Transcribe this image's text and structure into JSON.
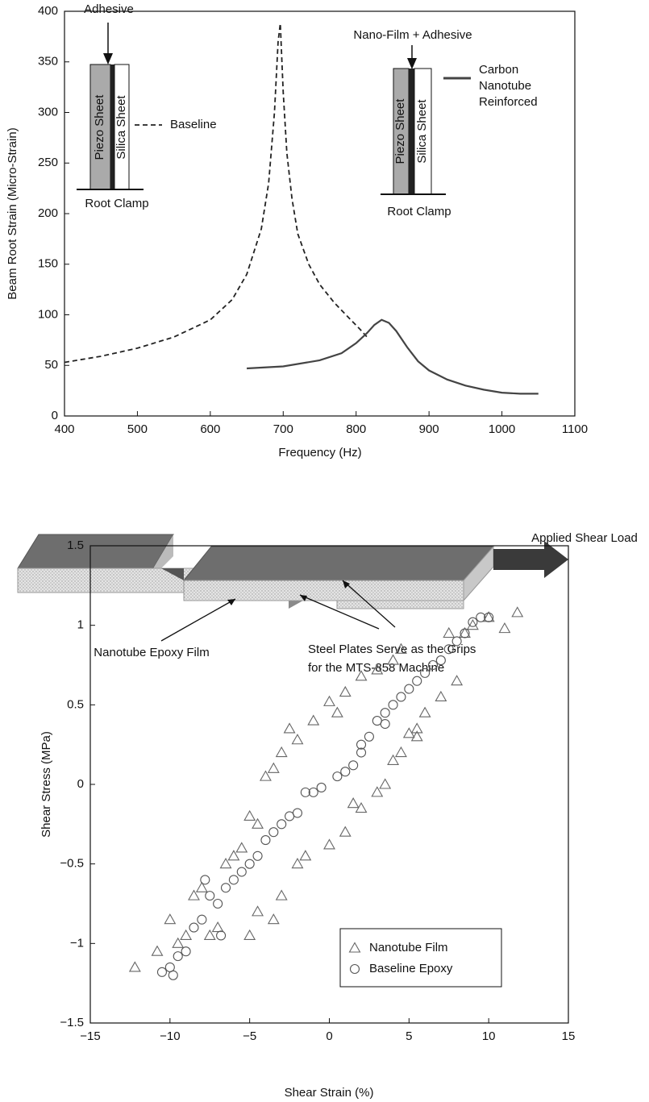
{
  "chart_data": [
    {
      "type": "line",
      "x_label": "Frequency (Hz)",
      "y_label": "Beam Root Strain (Micro-Strain)",
      "xlim": [
        400,
        1100
      ],
      "ylim": [
        0,
        400
      ],
      "xticks": [
        400,
        500,
        600,
        700,
        800,
        900,
        1000,
        1100
      ],
      "yticks": [
        0,
        50,
        100,
        150,
        200,
        250,
        300,
        350,
        400
      ],
      "series": [
        {
          "name": "Baseline",
          "color": "#222222",
          "dash": true,
          "x": [
            400,
            450,
            500,
            550,
            600,
            630,
            650,
            670,
            680,
            688,
            693,
            696,
            700,
            705,
            712,
            720,
            735,
            750,
            770,
            790,
            805,
            815
          ],
          "values": [
            53,
            59,
            67,
            78,
            95,
            115,
            140,
            185,
            230,
            300,
            370,
            388,
            320,
            260,
            215,
            180,
            150,
            130,
            112,
            97,
            86,
            78
          ]
        },
        {
          "name": "Carbon Nanotube Reinforced",
          "color": "#444444",
          "dash": false,
          "x": [
            650,
            700,
            750,
            780,
            800,
            815,
            825,
            835,
            845,
            855,
            870,
            885,
            900,
            925,
            950,
            975,
            1000,
            1025,
            1050
          ],
          "values": [
            47,
            49,
            55,
            62,
            72,
            82,
            90,
            95,
            92,
            84,
            68,
            54,
            45,
            36,
            30,
            26,
            23,
            22,
            22
          ]
        }
      ],
      "annotations": [
        "Adhesive",
        "Piezo Sheet",
        "Silica Sheet",
        "Root Clamp",
        "Nano-Film + Adhesive",
        "Piezo Sheet",
        "Silica Sheet",
        "Root Clamp"
      ]
    },
    {
      "type": "scatter",
      "x_label": "Shear Strain (%)",
      "y_label": "Shear Stress (MPa)",
      "xlim": [
        -15,
        15
      ],
      "ylim": [
        -1.5,
        1.5
      ],
      "xticks": [
        {
          "value": -15,
          "label": "−15"
        },
        {
          "value": -10,
          "label": "−10"
        },
        {
          "value": -5,
          "label": "−5"
        },
        0,
        5,
        10,
        15
      ],
      "yticks": [
        {
          "value": -1.5,
          "label": "−1.5"
        },
        {
          "value": -1,
          "label": "−1"
        },
        {
          "value": -0.5,
          "label": "−0.5"
        },
        0,
        0.5,
        1,
        1.5
      ],
      "series": [
        {
          "name": "Nanotube Film",
          "marker": "triangle",
          "color": "#666666",
          "x": [
            -12.2,
            -10.8,
            -10,
            -9.5,
            -9,
            -8.5,
            -8,
            -7.5,
            -7,
            -6.5,
            -6,
            -5.5,
            -5,
            -4.5,
            -4,
            -3.5,
            -3,
            -2.5,
            -2,
            -1,
            0,
            0.5,
            1,
            2,
            3,
            4,
            4.5,
            5.5,
            6,
            7,
            7.5,
            8,
            8.5,
            9,
            10,
            11,
            11.8,
            -5,
            -4.5,
            -3.5,
            -3,
            -2,
            -1.5,
            0,
            1,
            1.5,
            2,
            3,
            3.5,
            4,
            4.5,
            5,
            5.5
          ],
          "values": [
            -1.15,
            -1.05,
            -0.85,
            -1.0,
            -0.95,
            -0.7,
            -0.65,
            -0.95,
            -0.9,
            -0.5,
            -0.45,
            -0.4,
            -0.2,
            -0.25,
            0.05,
            0.1,
            0.2,
            0.35,
            0.28,
            0.4,
            0.52,
            0.45,
            0.58,
            0.68,
            0.72,
            0.78,
            0.85,
            0.3,
            0.45,
            0.55,
            0.95,
            0.65,
            0.95,
            1.0,
            1.05,
            0.98,
            1.08,
            -0.95,
            -0.8,
            -0.85,
            -0.7,
            -0.5,
            -0.45,
            -0.38,
            -0.3,
            -0.12,
            -0.15,
            -0.05,
            0.0,
            0.15,
            0.2,
            0.32,
            0.35
          ]
        },
        {
          "name": "Baseline Epoxy",
          "marker": "circle",
          "color": "#555555",
          "x": [
            -10.5,
            -10,
            -9.8,
            -9.5,
            -9,
            -8.5,
            -8,
            -7.5,
            -7,
            -6.5,
            -6,
            -5.5,
            -5,
            -4.5,
            -4,
            -3.5,
            -3,
            -2.5,
            -2,
            -1.5,
            -1,
            -0.5,
            0.5,
            1,
            1.5,
            2,
            2.5,
            3,
            3.5,
            4,
            4.5,
            5,
            5.5,
            6,
            6.5,
            7,
            7.5,
            8,
            8.5,
            9,
            9.5,
            10,
            -7.8,
            -6.8,
            3.5,
            2
          ],
          "values": [
            -1.18,
            -1.15,
            -1.2,
            -1.08,
            -1.05,
            -0.9,
            -0.85,
            -0.7,
            -0.75,
            -0.65,
            -0.6,
            -0.55,
            -0.5,
            -0.45,
            -0.35,
            -0.3,
            -0.25,
            -0.2,
            -0.18,
            -0.05,
            -0.05,
            -0.02,
            0.05,
            0.08,
            0.12,
            0.25,
            0.3,
            0.4,
            0.45,
            0.5,
            0.55,
            0.6,
            0.65,
            0.7,
            0.75,
            0.78,
            0.85,
            0.9,
            0.95,
            1.02,
            1.05,
            1.05,
            -0.6,
            -0.95,
            0.38,
            0.2
          ]
        }
      ]
    }
  ],
  "diagram": {
    "labels": [
      "Applied Shear Load",
      "Nanotube Epoxy Film",
      "Steel Plates Serve as the Grips",
      "for the MTS-858 Machine"
    ]
  }
}
